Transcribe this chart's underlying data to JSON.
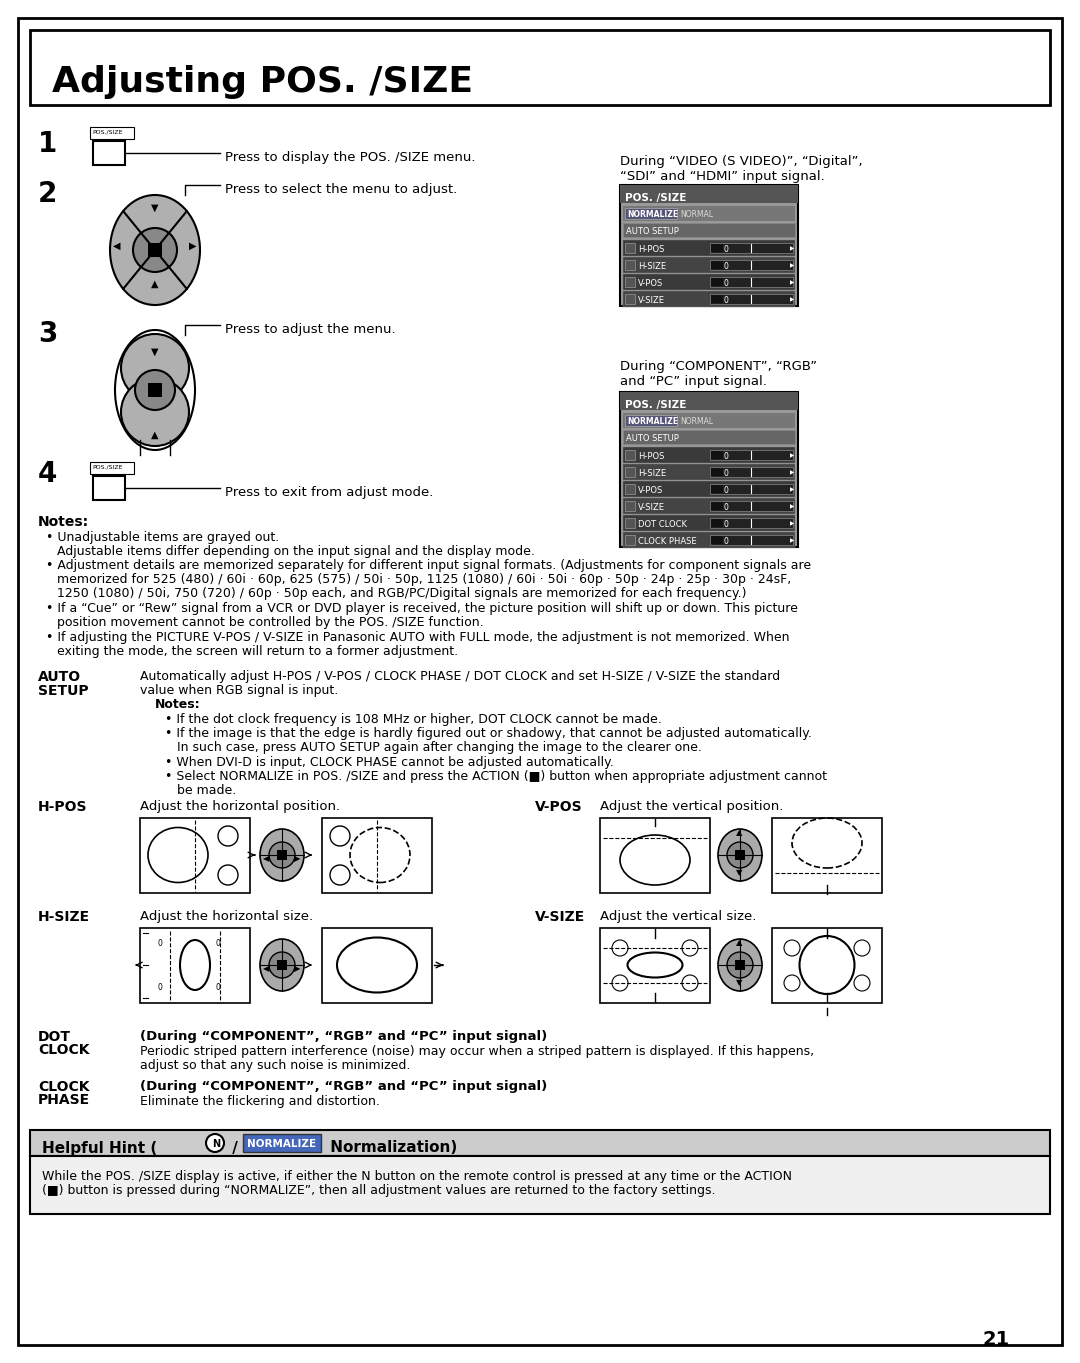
{
  "title": "Adjusting POS. /SIZE",
  "bg_color": "#ffffff",
  "page_number": "21",
  "step1_text": "Press to display the POS. /SIZE menu.",
  "step2_text": "Press to select the menu to adjust.",
  "step3_text": "Press to adjust the menu.",
  "step4_text": "Press to exit from adjust mode.",
  "during_video_text": "During “VIDEO (S VIDEO)”, “Digital”,\n“SDI” and “HDMI” input signal.",
  "during_component_text": "During “COMPONENT”, “RGB”\nand “PC” input signal.",
  "notes_title": "Notes:",
  "note1": "Unadjustable items are grayed out.",
  "note1b": "Adjustable items differ depending on the input signal and the display mode.",
  "note2": "Adjustment details are memorized separately for different input signal formats. (Adjustments for component signals are\nmemorized for 525 (480) / 60i · 60p, 625 (575) / 50i · 50p, 1125 (1080) / 60i · 50i · 60p · 50p · 24p · 25p · 30p · 24sF,\n1250 (1080) / 50i, 750 (720) / 60p · 50p each, and RGB/PC/Digital signals are memorized for each frequency.)",
  "note3": "If a “Cue” or “Rew” signal from a VCR or DVD player is received, the picture position will shift up or down. This picture\nposition movement cannot be controlled by the POS. /SIZE function.",
  "note4": "If adjusting the PICTURE V-POS / V-SIZE in Panasonic AUTO with FULL mode, the adjustment is not memorized. When\nexiting the mode, the screen will return to a former adjustment.",
  "auto_setup_text": "Automatically adjust H-POS / V-POS / CLOCK PHASE / DOT CLOCK and set H-SIZE / V-SIZE the standard\nvalue when RGB signal is input.",
  "auto_note1": "If the dot clock frequency is 108 MHz or higher, DOT CLOCK cannot be made.",
  "auto_note2": "If the image is that the edge is hardly figured out or shadowy, that cannot be adjusted automatically.\nIn such case, press AUTO SETUP again after changing the image to the clearer one.",
  "auto_note3": "When DVI-D is input, CLOCK PHASE cannot be adjusted automatically.",
  "auto_note4": "Select NORMALIZE in POS. /SIZE and press the ACTION (■) button when appropriate adjustment cannot\nbe made.",
  "hpos_label": "H-POS",
  "hpos_text": "Adjust the horizontal position.",
  "vpos_label": "V-POS",
  "vpos_text": "Adjust the vertical position.",
  "hsize_label": "H-SIZE",
  "hsize_text": "Adjust the horizontal size.",
  "vsize_label": "V-SIZE",
  "vsize_text": "Adjust the vertical size.",
  "dot_clock_text": "(During “COMPONENT”, “RGB” and “PC” input signal)",
  "dot_clock_text2": "Periodic striped pattern interference (noise) may occur when a striped pattern is displayed. If this happens,\nadjust so that any such noise is minimized.",
  "clock_phase_text": "(During “COMPONENT”, “RGB” and “PC” input signal)",
  "clock_phase_text2": "Eliminate the flickering and distortion.",
  "helpful_hint_text": "While the POS. /SIZE display is active, if either the N button on the remote control is pressed at any time or the ACTION\n(■) button is pressed during “NORMALIZE”, then all adjustment values are returned to the factory settings.",
  "menu_items1": [
    "H-POS",
    "H-SIZE",
    "V-POS",
    "V-SIZE"
  ],
  "menu_items2": [
    "H-POS",
    "H-SIZE",
    "V-POS",
    "V-SIZE",
    "DOT CLOCK",
    "CLOCK PHASE"
  ]
}
